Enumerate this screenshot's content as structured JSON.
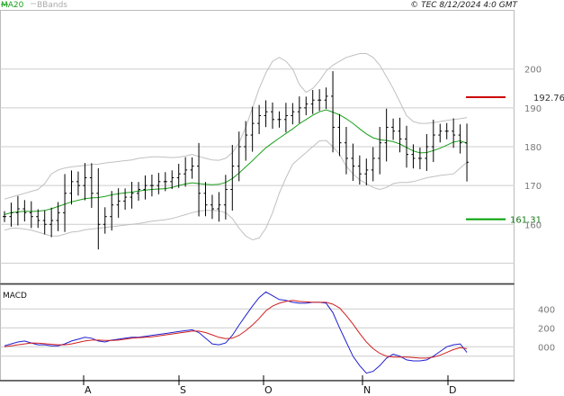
{
  "header": {
    "legend_ma": "MA20",
    "legend_bb": "BBands",
    "copyright": "© TEC 8/12/2024 4:0 GMT"
  },
  "colors": {
    "ma": "#1aa01a",
    "bands": "#c0c0c0",
    "price": "#000000",
    "macd": "#1f1fd0",
    "signal": "#d01f1f",
    "resistance": "#cc0000",
    "support": "#00a000"
  },
  "chart_data": [
    {
      "type": "ohlc",
      "yticks": [
        "200",
        "190",
        "180",
        "170",
        "160"
      ],
      "ytick_values": [
        200,
        190,
        180,
        170,
        160
      ],
      "ylim": [
        145,
        215
      ],
      "xlabels": [
        "A",
        "S",
        "O",
        "N",
        "D"
      ],
      "resistance": {
        "value": 192.76,
        "label": "192.76"
      },
      "support": {
        "value": 161.31,
        "label": "161.31"
      },
      "close": [
        162,
        163,
        164,
        163,
        162,
        161,
        160,
        161,
        163,
        168,
        171,
        170,
        172,
        168,
        160,
        162,
        165,
        166,
        167,
        168,
        169,
        170,
        170,
        171,
        171,
        172,
        173,
        174,
        175,
        168,
        165,
        164,
        165,
        169,
        175,
        180,
        183,
        186,
        188,
        189,
        187,
        187,
        188,
        189,
        190,
        191,
        192,
        192,
        193,
        185,
        181,
        177,
        175,
        173,
        174,
        177,
        181,
        185,
        184,
        182,
        178,
        177,
        177,
        180,
        183,
        184,
        184,
        183,
        181,
        176
      ],
      "ma20": [
        162.5,
        163,
        163.2,
        163.4,
        163.3,
        163.4,
        163.6,
        164,
        164.6,
        165.2,
        165.8,
        166.2,
        166.6,
        166.8,
        166.9,
        167.2,
        167.6,
        167.9,
        168.1,
        168.3,
        168.6,
        168.8,
        169,
        169.1,
        169.2,
        169.5,
        170,
        170.4,
        170.7,
        170.5,
        170.3,
        170.2,
        170.3,
        170.8,
        171.8,
        173.2,
        174.8,
        176.4,
        178.1,
        179.7,
        181,
        182.2,
        183.4,
        184.6,
        185.9,
        187,
        188.1,
        189,
        189.5,
        188.9,
        188.2,
        187.2,
        186,
        184.6,
        183.3,
        182.3,
        181.8,
        181.6,
        181.3,
        180.7,
        179.8,
        178.9,
        178.4,
        178.5,
        179,
        179.6,
        180.4,
        181.2,
        181.5,
        180.9
      ],
      "upper_band": [
        166.5,
        167,
        167.5,
        168,
        168.5,
        169,
        170.5,
        173,
        174,
        174.5,
        174.8,
        175,
        175.2,
        175.4,
        175.5,
        175.8,
        176,
        176.2,
        176.4,
        176.6,
        177,
        177.2,
        177.4,
        177.4,
        177.3,
        177.2,
        177.3,
        177.6,
        178,
        177.5,
        177,
        176.6,
        176.5,
        177,
        178.5,
        181,
        185,
        190,
        195,
        199,
        202,
        203,
        202,
        200,
        196,
        194,
        195,
        197,
        199.5,
        201,
        202,
        203,
        203.5,
        204,
        204,
        203,
        201,
        198,
        195,
        191.5,
        188,
        186.5,
        186,
        186,
        186.2,
        186.5,
        186.8,
        187,
        187.2,
        187.5
      ],
      "lower_band": [
        158.5,
        159,
        159,
        158.8,
        158.5,
        158,
        157.5,
        157,
        157,
        157.5,
        158,
        158.2,
        158.6,
        158.8,
        159,
        159.2,
        159.4,
        159.6,
        159.8,
        160,
        160.2,
        160.5,
        160.8,
        161,
        161.2,
        161.5,
        162,
        162.5,
        163,
        163.4,
        163.6,
        163.6,
        163.5,
        163,
        161.5,
        159,
        157,
        156,
        156.5,
        159,
        163,
        168,
        172,
        175.5,
        177,
        178.5,
        180,
        181.5,
        181.6,
        180,
        178,
        175,
        173,
        171.5,
        170.5,
        169.5,
        169,
        169.5,
        170.5,
        170.8,
        170.8,
        171,
        171.5,
        172,
        172.3,
        172.6,
        172.8,
        173,
        174.5,
        176
      ]
    },
    {
      "type": "line",
      "title": "MACD",
      "yticks": [
        "400",
        "200",
        "000"
      ],
      "ytick_values": [
        400,
        200,
        0
      ],
      "ylim": [
        -350,
        650
      ],
      "series": [
        {
          "values": [
            10,
            30,
            50,
            60,
            40,
            20,
            20,
            10,
            10,
            30,
            60,
            80,
            100,
            90,
            60,
            50,
            70,
            80,
            90,
            100,
            100,
            110,
            120,
            130,
            140,
            150,
            160,
            170,
            180,
            150,
            90,
            30,
            20,
            40,
            120,
            230,
            330,
            430,
            520,
            580,
            540,
            500,
            490,
            470,
            460,
            460,
            470,
            470,
            460,
            360,
            200,
            50,
            -100,
            -200,
            -280,
            -260,
            -200,
            -120,
            -80,
            -100,
            -140,
            -150,
            -150,
            -140,
            -100,
            -50,
            0,
            20,
            30,
            -60
          ]
        },
        {
          "values": [
            0,
            10,
            20,
            30,
            40,
            38,
            32,
            26,
            20,
            20,
            30,
            45,
            60,
            70,
            70,
            66,
            66,
            70,
            80,
            90,
            95,
            100,
            105,
            115,
            125,
            135,
            145,
            155,
            165,
            165,
            150,
            125,
            100,
            85,
            90,
            120,
            170,
            230,
            300,
            380,
            430,
            460,
            480,
            490,
            480,
            475,
            470,
            470,
            470,
            450,
            410,
            330,
            240,
            140,
            50,
            -20,
            -70,
            -100,
            -110,
            -110,
            -110,
            -115,
            -120,
            -120,
            -110,
            -90,
            -60,
            -30,
            -10,
            -20
          ]
        }
      ]
    }
  ]
}
